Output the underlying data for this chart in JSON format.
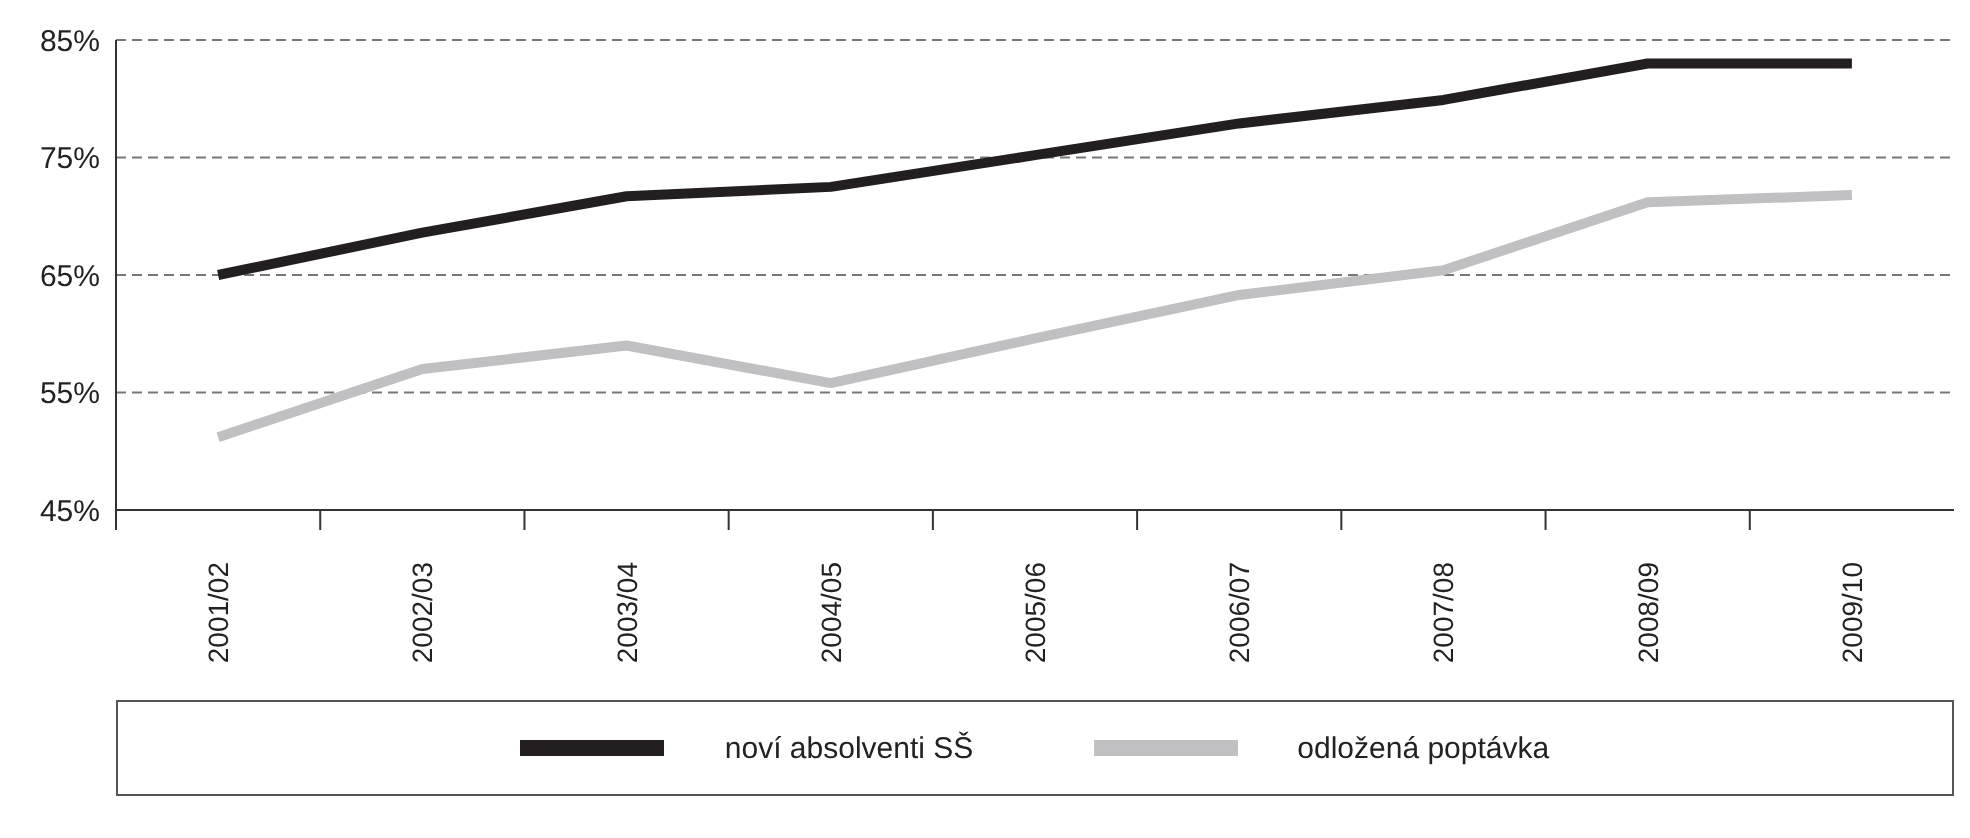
{
  "chart_data": {
    "type": "line",
    "categories": [
      "2001/02",
      "2002/03",
      "2003/04",
      "2004/05",
      "2005/06",
      "2006/07",
      "2007/08",
      "2008/09",
      "2009/10"
    ],
    "series": [
      {
        "name": "noví absolventi SŠ",
        "color": "#231f20",
        "values": [
          65.0,
          68.6,
          71.7,
          72.5,
          75.2,
          77.9,
          79.9,
          83.0,
          83.0
        ]
      },
      {
        "name": "odložená poptávka",
        "color": "#c0c0c2",
        "values": [
          51.2,
          57.0,
          59.0,
          55.8,
          59.6,
          63.3,
          65.4,
          71.2,
          71.8
        ]
      }
    ],
    "ylim": [
      45,
      85
    ],
    "yticks": [
      {
        "value": 45,
        "label": "45%"
      },
      {
        "value": 55,
        "label": "55%"
      },
      {
        "value": 65,
        "label": "65%"
      },
      {
        "value": 75,
        "label": "75%"
      },
      {
        "value": 85,
        "label": "85%"
      }
    ],
    "grid": "y",
    "legend": "bottom",
    "marker": "none",
    "line_style": "solid"
  }
}
